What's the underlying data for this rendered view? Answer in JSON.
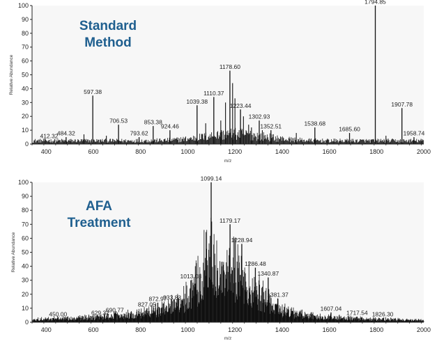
{
  "chart_data": [
    {
      "type": "line",
      "title_lines": [
        "Standard",
        "Method"
      ],
      "xlabel": "m/z",
      "ylabel": "Relative Abundance",
      "xlim": [
        340,
        2000
      ],
      "ylim": [
        0,
        100
      ],
      "x_ticks": [
        "400",
        "600",
        "800",
        "1000",
        "1200",
        "1400",
        "1600",
        "1800",
        "2000"
      ],
      "y_ticks": [
        "0",
        "10",
        "20",
        "30",
        "40",
        "50",
        "60",
        "70",
        "80",
        "90",
        "100"
      ],
      "baseline_noise": 3,
      "peaks": [
        {
          "x": 412.32,
          "y": 3,
          "label": "412.32"
        },
        {
          "x": 484.32,
          "y": 5,
          "label": "484.32"
        },
        {
          "x": 597.38,
          "y": 35,
          "label": "597.38"
        },
        {
          "x": 706.53,
          "y": 14,
          "label": "706.53"
        },
        {
          "x": 793.62,
          "y": 5,
          "label": "793.62"
        },
        {
          "x": 853.38,
          "y": 13,
          "label": "853.38"
        },
        {
          "x": 924.46,
          "y": 10,
          "label": "924.46"
        },
        {
          "x": 1039.38,
          "y": 28,
          "label": "1039.38"
        },
        {
          "x": 1110.37,
          "y": 34,
          "label": "1110.37"
        },
        {
          "x": 1178.6,
          "y": 53,
          "label": "1178.60"
        },
        {
          "x": 1223.44,
          "y": 25,
          "label": "1223.44"
        },
        {
          "x": 1302.93,
          "y": 17,
          "label": "1302.93"
        },
        {
          "x": 1352.51,
          "y": 10,
          "label": "1352.51"
        },
        {
          "x": 1538.68,
          "y": 12,
          "label": "1538.68"
        },
        {
          "x": 1685.6,
          "y": 8,
          "label": "1685.60"
        },
        {
          "x": 1794.85,
          "y": 100,
          "label": "1794.85"
        },
        {
          "x": 1907.78,
          "y": 26,
          "label": "1907.78"
        },
        {
          "x": 1958.74,
          "y": 5,
          "label": "1958.74"
        }
      ],
      "extra_peaks": [
        {
          "x": 1190,
          "y": 44
        },
        {
          "x": 1160,
          "y": 30
        },
        {
          "x": 1200,
          "y": 33
        },
        {
          "x": 1236,
          "y": 20
        },
        {
          "x": 1258,
          "y": 14
        },
        {
          "x": 1270,
          "y": 12
        },
        {
          "x": 1140,
          "y": 17
        },
        {
          "x": 1076,
          "y": 15
        },
        {
          "x": 1316,
          "y": 10
        },
        {
          "x": 1460,
          "y": 8
        },
        {
          "x": 560,
          "y": 7
        },
        {
          "x": 655,
          "y": 6
        },
        {
          "x": 1840,
          "y": 6
        }
      ]
    },
    {
      "type": "line",
      "title_lines": [
        "AFA",
        "Treatment"
      ],
      "xlabel": "m/z",
      "ylabel": "Relative Abundance",
      "xlim": [
        340,
        2000
      ],
      "ylim": [
        0,
        100
      ],
      "x_ticks": [
        "400",
        "600",
        "800",
        "1000",
        "1200",
        "1400",
        "1600",
        "1800",
        "2000"
      ],
      "y_ticks": [
        "0",
        "10",
        "20",
        "30",
        "40",
        "50",
        "60",
        "70",
        "80",
        "90",
        "100"
      ],
      "baseline_noise": 5,
      "peaks": [
        {
          "x": 450.0,
          "y": 3,
          "label": "450.00"
        },
        {
          "x": 629.32,
          "y": 4,
          "label": "629.32"
        },
        {
          "x": 690.77,
          "y": 6,
          "label": "690.77"
        },
        {
          "x": 827.05,
          "y": 10,
          "label": "827.05"
        },
        {
          "x": 872.97,
          "y": 14,
          "label": "872.97"
        },
        {
          "x": 933.83,
          "y": 15,
          "label": "933.83"
        },
        {
          "x": 1013.08,
          "y": 30,
          "label": "1013.08"
        },
        {
          "x": 1099.14,
          "y": 100,
          "label": "1099.14"
        },
        {
          "x": 1179.17,
          "y": 70,
          "label": "1179.17"
        },
        {
          "x": 1228.94,
          "y": 56,
          "label": "1228.94"
        },
        {
          "x": 1286.48,
          "y": 39,
          "label": "1286.48"
        },
        {
          "x": 1340.87,
          "y": 32,
          "label": "1340.87"
        },
        {
          "x": 1381.37,
          "y": 17,
          "label": "1381.37"
        },
        {
          "x": 1607.04,
          "y": 7,
          "label": "1607.04"
        },
        {
          "x": 1717.54,
          "y": 4,
          "label": "1717.54"
        },
        {
          "x": 1826.3,
          "y": 3,
          "label": "1826.30"
        }
      ],
      "envelope": [
        [
          340,
          3
        ],
        [
          600,
          5
        ],
        [
          800,
          9
        ],
        [
          900,
          14
        ],
        [
          980,
          22
        ],
        [
          1050,
          45
        ],
        [
          1085,
          70
        ],
        [
          1099,
          85
        ],
        [
          1115,
          58
        ],
        [
          1150,
          52
        ],
        [
          1179,
          62
        ],
        [
          1210,
          50
        ],
        [
          1250,
          40
        ],
        [
          1300,
          30
        ],
        [
          1350,
          22
        ],
        [
          1400,
          13
        ],
        [
          1450,
          9
        ],
        [
          1550,
          6
        ],
        [
          1700,
          4
        ],
        [
          2000,
          2
        ]
      ]
    }
  ]
}
